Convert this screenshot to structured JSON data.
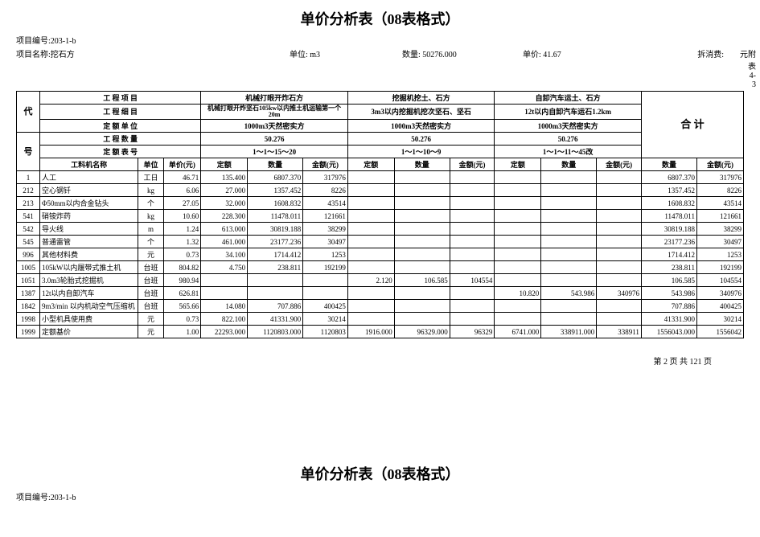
{
  "title_top": "单价分析表（08表格式）",
  "title_bottom": "单价分析表（08表格式）",
  "meta": {
    "proj_no_label": "项目编号:",
    "proj_no": "203-1-b",
    "proj_name_label": "项目名称:",
    "proj_name": "挖石方",
    "unit_label": "单位:",
    "unit": "m3",
    "qty_label": "数量:",
    "qty": "50276.000",
    "price_label": "单价:",
    "price": "41.67",
    "consume_label": "拆消费:",
    "yuan": "元",
    "appendix": "附表4-3"
  },
  "header": {
    "dai": "代",
    "hao": "号",
    "row1_label": "工 程 项 目",
    "row1_c1": "机械打眼开炸石方",
    "row1_c2": "挖掘机挖土、石方",
    "row1_c3": "自卸汽车运土、石方",
    "row2_label": "工 程 细 目",
    "row2_c1": "机械打眼开炸坚石105kw以内推土机运输第一个20m",
    "row2_c2": "3m3以内挖掘机挖次坚石、坚石",
    "row2_c3": "12t以内自卸汽车运石1.2km",
    "row3_label": "定 额 单 位",
    "row3_c": "1000m3天然密实方",
    "row4_label": "工 程 数 量",
    "row4_c": "50.276",
    "row5_label": "定 额 表 号",
    "row5_c1": "1～1～15～20",
    "row5_c2": "1～1～10～9",
    "row5_c3": "1～1～11～45改",
    "sum_label": "合  计",
    "col_name": "工料机名称",
    "col_unit": "单位",
    "col_price": "单价(元)",
    "col_norm": "定额",
    "col_qty": "数量",
    "col_amt": "金额(元)"
  },
  "rows": [
    {
      "id": "1",
      "name": "人工",
      "unit": "工日",
      "price": "46.71",
      "a1": "135.400",
      "q1": "6807.370",
      "m1": "317976",
      "a2": "",
      "q2": "",
      "m2": "",
      "a3": "",
      "q3": "",
      "m3": "",
      "sq": "6807.370",
      "sm": "317976"
    },
    {
      "id": "212",
      "name": "空心钢钎",
      "unit": "kg",
      "price": "6.06",
      "a1": "27.000",
      "q1": "1357.452",
      "m1": "8226",
      "a2": "",
      "q2": "",
      "m2": "",
      "a3": "",
      "q3": "",
      "m3": "",
      "sq": "1357.452",
      "sm": "8226"
    },
    {
      "id": "213",
      "name": "Φ50mm以内合金钻头",
      "unit": "个",
      "price": "27.05",
      "a1": "32.000",
      "q1": "1608.832",
      "m1": "43514",
      "a2": "",
      "q2": "",
      "m2": "",
      "a3": "",
      "q3": "",
      "m3": "",
      "sq": "1608.832",
      "sm": "43514"
    },
    {
      "id": "541",
      "name": "硝铵炸药",
      "unit": "kg",
      "price": "10.60",
      "a1": "228.300",
      "q1": "11478.011",
      "m1": "121661",
      "a2": "",
      "q2": "",
      "m2": "",
      "a3": "",
      "q3": "",
      "m3": "",
      "sq": "11478.011",
      "sm": "121661"
    },
    {
      "id": "542",
      "name": "导火线",
      "unit": "m",
      "price": "1.24",
      "a1": "613.000",
      "q1": "30819.188",
      "m1": "38299",
      "a2": "",
      "q2": "",
      "m2": "",
      "a3": "",
      "q3": "",
      "m3": "",
      "sq": "30819.188",
      "sm": "38299"
    },
    {
      "id": "545",
      "name": "普通雷管",
      "unit": "个",
      "price": "1.32",
      "a1": "461.000",
      "q1": "23177.236",
      "m1": "30497",
      "a2": "",
      "q2": "",
      "m2": "",
      "a3": "",
      "q3": "",
      "m3": "",
      "sq": "23177.236",
      "sm": "30497"
    },
    {
      "id": "996",
      "name": "其他材料费",
      "unit": "元",
      "price": "0.73",
      "a1": "34.100",
      "q1": "1714.412",
      "m1": "1253",
      "a2": "",
      "q2": "",
      "m2": "",
      "a3": "",
      "q3": "",
      "m3": "",
      "sq": "1714.412",
      "sm": "1253"
    },
    {
      "id": "1005",
      "name": "105kW以内履带式推土机",
      "unit": "台班",
      "price": "804.82",
      "a1": "4.750",
      "q1": "238.811",
      "m1": "192199",
      "a2": "",
      "q2": "",
      "m2": "",
      "a3": "",
      "q3": "",
      "m3": "",
      "sq": "238.811",
      "sm": "192199"
    },
    {
      "id": "1051",
      "name": "3.0m3轮胎式挖掘机",
      "unit": "台班",
      "price": "980.94",
      "a1": "",
      "q1": "",
      "m1": "",
      "a2": "2.120",
      "q2": "106.585",
      "m2": "104554",
      "a3": "",
      "q3": "",
      "m3": "",
      "sq": "106.585",
      "sm": "104554"
    },
    {
      "id": "1387",
      "name": "12t以内自卸汽车",
      "unit": "台班",
      "price": "626.81",
      "a1": "",
      "q1": "",
      "m1": "",
      "a2": "",
      "q2": "",
      "m2": "",
      "a3": "10.820",
      "q3": "543.986",
      "m3": "340976",
      "sq": "543.986",
      "sm": "340976"
    },
    {
      "id": "1842",
      "name": "9m3/min 以内机动空气压缩机",
      "unit": "台班",
      "price": "565.66",
      "a1": "14.080",
      "q1": "707.886",
      "m1": "400425",
      "a2": "",
      "q2": "",
      "m2": "",
      "a3": "",
      "q3": "",
      "m3": "",
      "sq": "707.886",
      "sm": "400425"
    },
    {
      "id": "1998",
      "name": "小型机具使用费",
      "unit": "元",
      "price": "0.73",
      "a1": "822.100",
      "q1": "41331.900",
      "m1": "30214",
      "a2": "",
      "q2": "",
      "m2": "",
      "a3": "",
      "q3": "",
      "m3": "",
      "sq": "41331.900",
      "sm": "30214"
    },
    {
      "id": "1999",
      "name": "定额基价",
      "unit": "元",
      "price": "1.00",
      "a1": "22293.000",
      "q1": "1120803.000",
      "m1": "1120803",
      "a2": "1916.000",
      "q2": "96329.000",
      "m2": "96329",
      "a3": "6741.000",
      "q3": "338911.000",
      "m3": "338911",
      "sq": "1556043.000",
      "sm": "1556042"
    }
  ],
  "footer_page": "第 2 页 共 121 页",
  "bottom_proj_no": "项目编号:203-1-b"
}
